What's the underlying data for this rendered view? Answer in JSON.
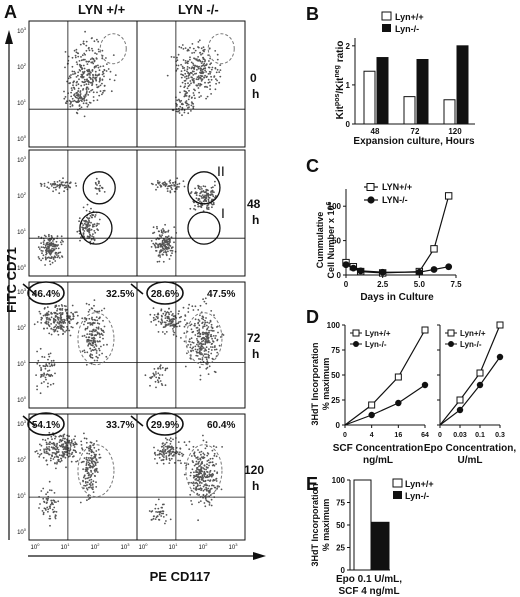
{
  "panel_letters": [
    "A",
    "B",
    "C",
    "D",
    "E"
  ],
  "panelA": {
    "col_headers": [
      "LYN +/+",
      "LYN -/-"
    ],
    "x_axis_label": "PE CD117",
    "y_axis_label": "FITC CD71",
    "tick_exponents": [
      "10",
      "10",
      "10",
      "10"
    ],
    "tick_powers": [
      "0",
      "1",
      "2",
      "3"
    ],
    "rows": [
      {
        "time": "0",
        "unit": "h",
        "wt_left": "",
        "wt_right": "",
        "ko_left": "",
        "ko_right": ""
      },
      {
        "time": "48",
        "unit": "h",
        "wt_left": "",
        "wt_right": "",
        "ko_left": "",
        "ko_right": "",
        "gate_upper": "II",
        "gate_lower": "I"
      },
      {
        "time": "72",
        "unit": "h",
        "wt_left": "46.4%",
        "wt_right": "32.5%",
        "ko_left": "28.6%",
        "ko_right": "47.5%"
      },
      {
        "time": "120",
        "unit": "h",
        "wt_left": "54.1%",
        "wt_right": "33.7%",
        "ko_left": "29.9%",
        "ko_right": "60.4%"
      }
    ]
  },
  "chart_data": [
    {
      "panel": "B",
      "type": "bar",
      "categories": [
        "48",
        "72",
        "120"
      ],
      "series": [
        {
          "name": "Lyn+/+",
          "values": [
            1.35,
            0.7,
            0.62
          ],
          "color": "#ffffff"
        },
        {
          "name": "Lyn-/-",
          "values": [
            1.7,
            1.65,
            2.0
          ],
          "color": "#111111"
        }
      ],
      "xlabel": "Expansion culture, Hours",
      "ylabel": "Kit pos / Kit neg ratio",
      "ylim": [
        0,
        2.2
      ],
      "legend": "top-left"
    },
    {
      "panel": "C",
      "type": "line",
      "series": [
        {
          "name": "LYN+/+",
          "marker": "open-square",
          "x": [
            0,
            0.5,
            1,
            2.5,
            5,
            6,
            7
          ],
          "y": [
            18,
            12,
            5,
            3,
            5,
            38,
            115
          ]
        },
        {
          "name": "LYN-/-",
          "marker": "filled-circle",
          "x": [
            0,
            0.5,
            1,
            2.5,
            5,
            6,
            7
          ],
          "y": [
            15,
            10,
            6,
            4,
            4,
            8,
            12
          ]
        }
      ],
      "xticks": [
        "0",
        "2.5",
        "5.0",
        "7.5"
      ],
      "yticks": [
        "0",
        "50",
        "100"
      ],
      "xlabel": "Days in Culture",
      "ylabel": "Cummulative Cell Number x 10^6",
      "xlim": [
        0,
        7.5
      ],
      "ylim": [
        0,
        125
      ],
      "legend": "top-left"
    },
    {
      "panel": "D-left",
      "type": "line",
      "series": [
        {
          "name": "Lyn+/+",
          "marker": "open-square",
          "x": [
            0,
            4,
            16,
            64
          ],
          "y": [
            0,
            20,
            48,
            95
          ]
        },
        {
          "name": "Lyn-/-",
          "marker": "filled-circle",
          "x": [
            0,
            4,
            16,
            64
          ],
          "y": [
            0,
            10,
            22,
            40
          ]
        }
      ],
      "xticks": [
        "0",
        "4",
        "16",
        "64"
      ],
      "xlabel": "SCF Concentration ng/mL",
      "ylabel": "3HdT Incorporation % maximum",
      "ylim": [
        0,
        100
      ]
    },
    {
      "panel": "D-right",
      "type": "line",
      "series": [
        {
          "name": "Lyn+/+",
          "marker": "open-square",
          "x": [
            0,
            0.03,
            0.1,
            0.3
          ],
          "y": [
            0,
            25,
            52,
            100
          ]
        },
        {
          "name": "Lyn-/-",
          "marker": "filled-circle",
          "x": [
            0,
            0.03,
            0.1,
            0.3
          ],
          "y": [
            0,
            15,
            40,
            68
          ]
        }
      ],
      "xticks": [
        "0",
        "0.03",
        "0.1",
        "0.3"
      ],
      "xlabel": "Epo Concentration, U/mL",
      "ylim": [
        0,
        100
      ]
    },
    {
      "panel": "E",
      "type": "bar",
      "categories": [
        "Epo 0.1 U/mL, SCF 4 ng/mL"
      ],
      "series": [
        {
          "name": "Lyn+/+",
          "values": [
            100
          ],
          "color": "#ffffff"
        },
        {
          "name": "Lyn-/-",
          "values": [
            53
          ],
          "color": "#111111"
        }
      ],
      "yticks": [
        "0",
        "25",
        "50",
        "75",
        "100"
      ],
      "xlabel": "Epo 0.1 U/mL, SCF 4 ng/mL",
      "ylabel": "3HdT Incorporation % maximum",
      "ylim": [
        0,
        100
      ],
      "legend": "top-right"
    }
  ],
  "text": {
    "b_yticks": [
      "0",
      "1",
      "2"
    ],
    "b_leg1": "Lyn+/+",
    "b_leg2": "Lyn-/-",
    "c_leg1": "LYN+/+",
    "c_leg2": "LYN-/-",
    "d_leg1": "Lyn+/+",
    "d_leg2": "Lyn-/-",
    "d_yticks": [
      "0",
      "25",
      "50",
      "75",
      "100"
    ],
    "d_ylabel_1": "3HdT Incorporation",
    "d_ylabel_2": "% maximum",
    "d_xlabel_left_1": "SCF Concentration",
    "d_xlabel_left_2": "ng/mL",
    "d_xlabel_right_1": "Epo Concentration,",
    "d_xlabel_right_2": "U/mL",
    "e_xlabel_1": "Epo 0.1 U/mL,",
    "e_xlabel_2": "SCF 4 ng/mL",
    "c_ylabel_1": "Cummulative",
    "c_ylabel_2": "Cell Number x 10",
    "c_ylabel_sup": "6",
    "b_xlabel": "Expansion culture, Hours",
    "b_ylabel_a": "Kit",
    "b_ylabel_sup1": "pos",
    "b_ylabel_b": "/Kit",
    "b_ylabel_sup2": "neg",
    "b_ylabel_c": " ratio"
  }
}
